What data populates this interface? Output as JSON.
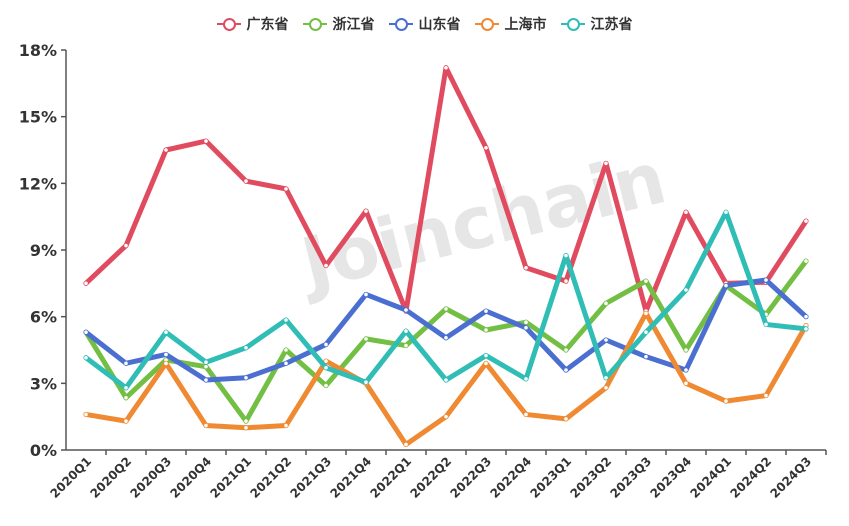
{
  "legend": [
    {
      "name": "广东省",
      "color": "#e04b5f"
    },
    {
      "name": "浙江省",
      "color": "#72bf44"
    },
    {
      "name": "山东省",
      "color": "#4a6fd1"
    },
    {
      "name": "上海市",
      "color": "#ef8a33"
    },
    {
      "name": "江苏省",
      "color": "#2fbdb5"
    }
  ],
  "watermark": "Joinchain",
  "chart_data": {
    "type": "line",
    "title": "",
    "xlabel": "",
    "ylabel": "",
    "ylim": [
      0,
      18
    ],
    "yticks": [
      "0%",
      "3%",
      "6%",
      "9%",
      "12%",
      "15%",
      "18%"
    ],
    "grid": false,
    "legend_position": "top-center",
    "categories": [
      "2020Q1",
      "2020Q2",
      "2020Q3",
      "2020Q4",
      "2021Q1",
      "2021Q2",
      "2021Q3",
      "2021Q4",
      "2022Q1",
      "2022Q2",
      "2022Q3",
      "2022Q4",
      "2023Q1",
      "2023Q2",
      "2023Q3",
      "2023Q4",
      "2024Q1",
      "2024Q2",
      "2024Q3"
    ],
    "series": [
      {
        "name": "广东省",
        "color": "#e04b5f",
        "values": [
          7.5,
          9.2,
          13.5,
          13.9,
          12.1,
          11.75,
          8.3,
          10.75,
          6.25,
          17.2,
          13.6,
          8.2,
          7.6,
          12.9,
          6.25,
          10.7,
          7.5,
          7.55,
          10.3
        ]
      },
      {
        "name": "浙江省",
        "color": "#72bf44",
        "values": [
          5.3,
          2.35,
          4.05,
          3.75,
          1.3,
          4.5,
          2.9,
          5.0,
          4.7,
          6.35,
          5.4,
          5.75,
          4.5,
          6.6,
          7.6,
          4.5,
          7.4,
          6.1,
          8.5
        ]
      },
      {
        "name": "山东省",
        "color": "#4a6fd1",
        "values": [
          5.3,
          3.9,
          4.3,
          3.15,
          3.25,
          3.9,
          4.75,
          7.0,
          6.3,
          5.05,
          6.25,
          5.5,
          3.6,
          4.95,
          4.2,
          3.6,
          7.4,
          7.65,
          6.0
        ]
      },
      {
        "name": "上海市",
        "color": "#ef8a33",
        "values": [
          1.6,
          1.3,
          3.9,
          1.1,
          1.0,
          1.1,
          4.0,
          3.0,
          0.25,
          1.5,
          3.9,
          1.6,
          1.4,
          2.8,
          6.15,
          3.0,
          2.2,
          2.45,
          5.6
        ]
      },
      {
        "name": "江苏省",
        "color": "#2fbdb5",
        "values": [
          4.15,
          2.8,
          5.3,
          3.95,
          4.6,
          5.85,
          3.7,
          3.05,
          5.35,
          3.15,
          4.25,
          3.2,
          8.75,
          3.25,
          5.3,
          7.2,
          10.7,
          5.65,
          5.45
        ]
      }
    ]
  }
}
